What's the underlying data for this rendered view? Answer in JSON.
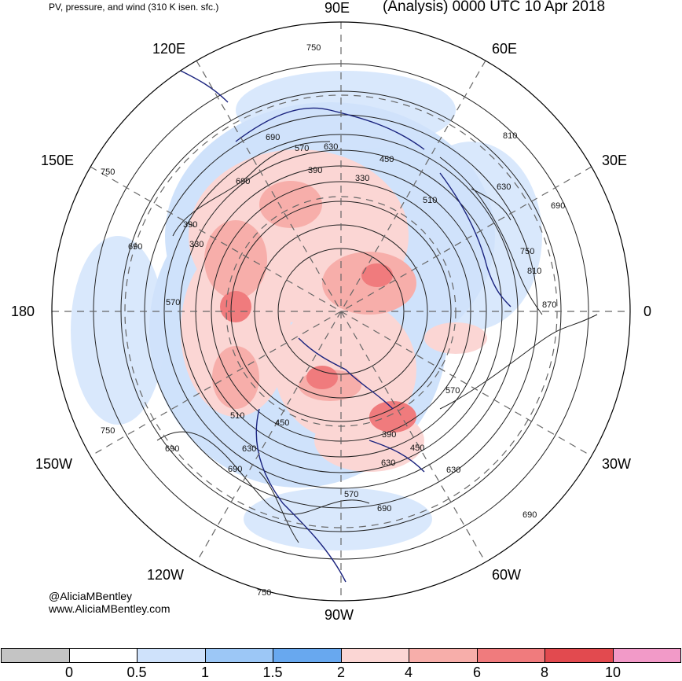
{
  "header": {
    "subtitle": "PV, pressure, and wind (310 K isen. sfc.)",
    "title": "(Analysis) 0000 UTC 10 Apr 2018"
  },
  "map": {
    "projection": "north-polar-stereographic",
    "longitude_labels": [
      {
        "id": "90e",
        "text": "90E"
      },
      {
        "id": "60e",
        "text": "60E"
      },
      {
        "id": "30e",
        "text": "30E"
      },
      {
        "id": "0",
        "text": "0"
      },
      {
        "id": "30w",
        "text": "30W"
      },
      {
        "id": "60w",
        "text": "60W"
      },
      {
        "id": "90w",
        "text": "90W"
      },
      {
        "id": "120w",
        "text": "120W"
      },
      {
        "id": "150w",
        "text": "150W"
      },
      {
        "id": "180",
        "text": "180"
      },
      {
        "id": "150e",
        "text": "150E"
      },
      {
        "id": "120e",
        "text": "120E"
      }
    ],
    "contour_labels": [
      "750",
      "690",
      "570",
      "630",
      "810",
      "450",
      "390",
      "330",
      "630",
      "510",
      "690",
      "690",
      "390",
      "330",
      "750",
      "690",
      "570",
      "750",
      "810",
      "870",
      "570",
      "630",
      "690",
      "450",
      "390",
      "510",
      "450",
      "630",
      "690",
      "750",
      "690",
      "570",
      "630",
      "690",
      "750"
    ]
  },
  "credits": {
    "author": "@AliciaMBentley",
    "website": "www.AliciaMBentley.com"
  },
  "colorbar": {
    "colors": [
      "#c4c4c4",
      "#ffffff",
      "#cfe2fb",
      "#9cc7f6",
      "#68a8ef",
      "#fbd6d4",
      "#f7aeaa",
      "#f07b7d",
      "#e24a4f",
      "#f29ac8"
    ],
    "ticks": [
      "0",
      "0.5",
      "1",
      "1.5",
      "2",
      "4",
      "6",
      "8",
      "10"
    ]
  }
}
